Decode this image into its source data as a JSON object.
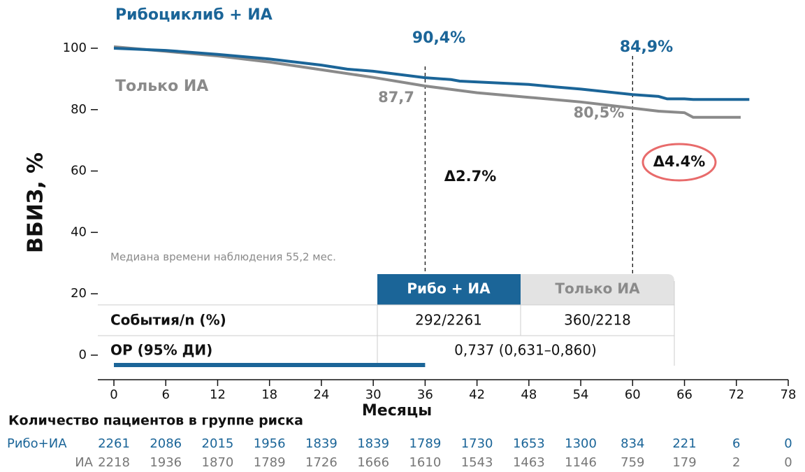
{
  "chart_data": {
    "type": "line",
    "ylabel": "ВБИЗ, %",
    "xlabel": "Месяцы",
    "xlim": [
      0,
      78
    ],
    "xticks": [
      0,
      6,
      12,
      18,
      24,
      30,
      36,
      42,
      48,
      54,
      60,
      66,
      72,
      78
    ],
    "ylim": [
      -8,
      100
    ],
    "yticks": [
      0,
      20,
      40,
      60,
      80,
      100
    ],
    "series": [
      {
        "name": "Рибоциклиб + ИА",
        "color": "#1b6598",
        "x": [
          0,
          6,
          12,
          18,
          24,
          27,
          30,
          36,
          39,
          40,
          48,
          51,
          54,
          60,
          63,
          64,
          66,
          67,
          73.5
        ],
        "values": [
          100,
          99.3,
          98,
          96.5,
          94.5,
          93.2,
          92.5,
          90.4,
          89.8,
          89.3,
          88.2,
          87.4,
          86.7,
          84.9,
          84.3,
          83.5,
          83.5,
          83.3,
          83.3
        ]
      },
      {
        "name": "Только ИА",
        "color": "#8a8a8a",
        "x": [
          0,
          6,
          12,
          18,
          24,
          30,
          36,
          42,
          48,
          54,
          60,
          63,
          66,
          67,
          72.5
        ],
        "values": [
          100.5,
          99,
          97.5,
          95.5,
          93,
          90.5,
          87.7,
          85.5,
          84,
          82.5,
          80.5,
          79.5,
          79,
          77.5,
          77.5
        ]
      }
    ],
    "reference_x": [
      36,
      60
    ],
    "highlight_range": [
      0,
      36
    ],
    "annotations": {
      "ribo_36": "90,4%",
      "ia_36": "87,7",
      "ribo_60": "84,9%",
      "ia_60": "80,5%",
      "delta_36": "Δ2.7%",
      "delta_60": "Δ4.4%",
      "note": "Медиана времени наблюдения 55,2 мес."
    },
    "table": {
      "headers": [
        "Рибо + ИА",
        "Только ИА"
      ],
      "rows": [
        [
          "События/n (%)",
          "292/2261",
          "360/2218"
        ],
        [
          "ОР (95% ДИ)",
          "0,737 (0,631–0,860)"
        ]
      ]
    },
    "risk_table": {
      "title": "Количество пациентов в группе риска",
      "rows": [
        {
          "label": "Рибо+ИА",
          "values": [
            2261,
            2086,
            2015,
            1956,
            1839,
            1839,
            1789,
            1730,
            1653,
            1300,
            834,
            221,
            6,
            0
          ]
        },
        {
          "label": "ИА",
          "values": [
            2218,
            1936,
            1870,
            1789,
            1726,
            1666,
            1610,
            1543,
            1463,
            1146,
            759,
            179,
            2,
            0
          ]
        }
      ]
    }
  }
}
